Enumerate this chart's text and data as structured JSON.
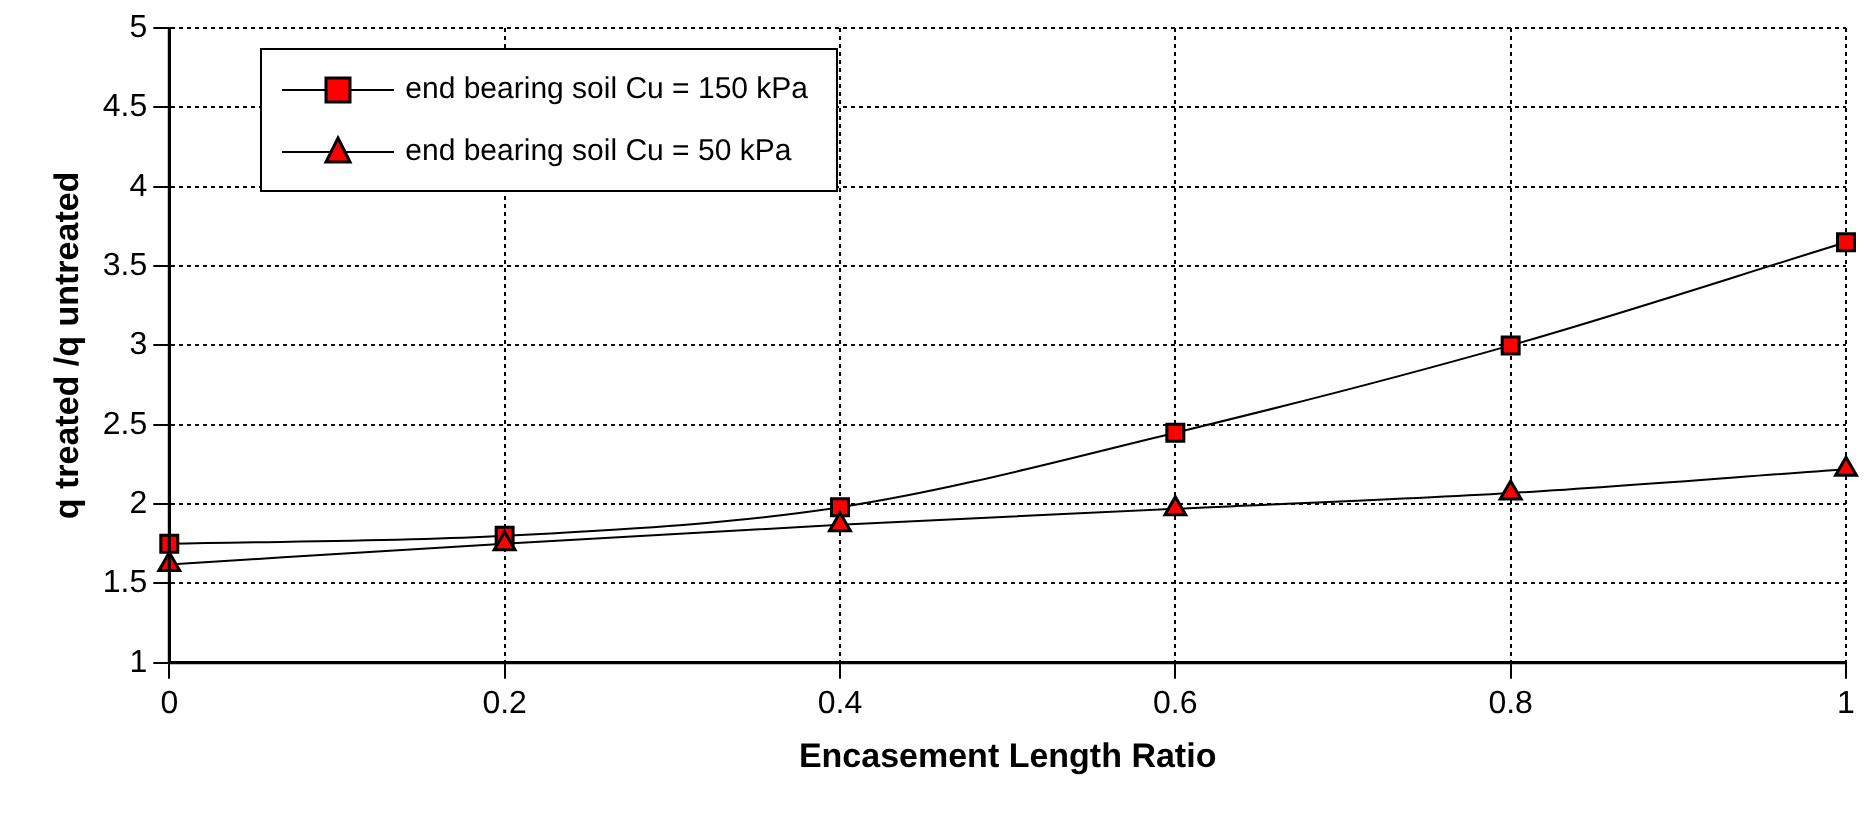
{
  "chart_data": {
    "type": "line",
    "xlabel": "Encasement Length Ratio",
    "ylabel": "q treated /q untreated",
    "x": [
      0,
      0.2,
      0.4,
      0.6,
      0.8,
      1
    ],
    "series": [
      {
        "name": "end bearing soil Cu = 150 kPa",
        "color": "#ff0000",
        "marker": "square",
        "values": [
          1.75,
          1.8,
          1.98,
          2.45,
          3.0,
          3.65
        ]
      },
      {
        "name": "end bearing soil Cu = 50 kPa",
        "color": "#ff0000",
        "marker": "triangle",
        "values": [
          1.62,
          1.75,
          1.87,
          1.97,
          2.07,
          2.22
        ]
      }
    ],
    "xlim": [
      0,
      1
    ],
    "xticks": [
      0,
      0.2,
      0.4,
      0.6,
      0.8,
      1
    ],
    "ylim": [
      1,
      5
    ],
    "yticks": [
      1,
      1.5,
      2,
      2.5,
      3,
      3.5,
      4,
      4.5,
      5
    ],
    "grid": true,
    "legend": "top left",
    "line_style": "solid"
  }
}
